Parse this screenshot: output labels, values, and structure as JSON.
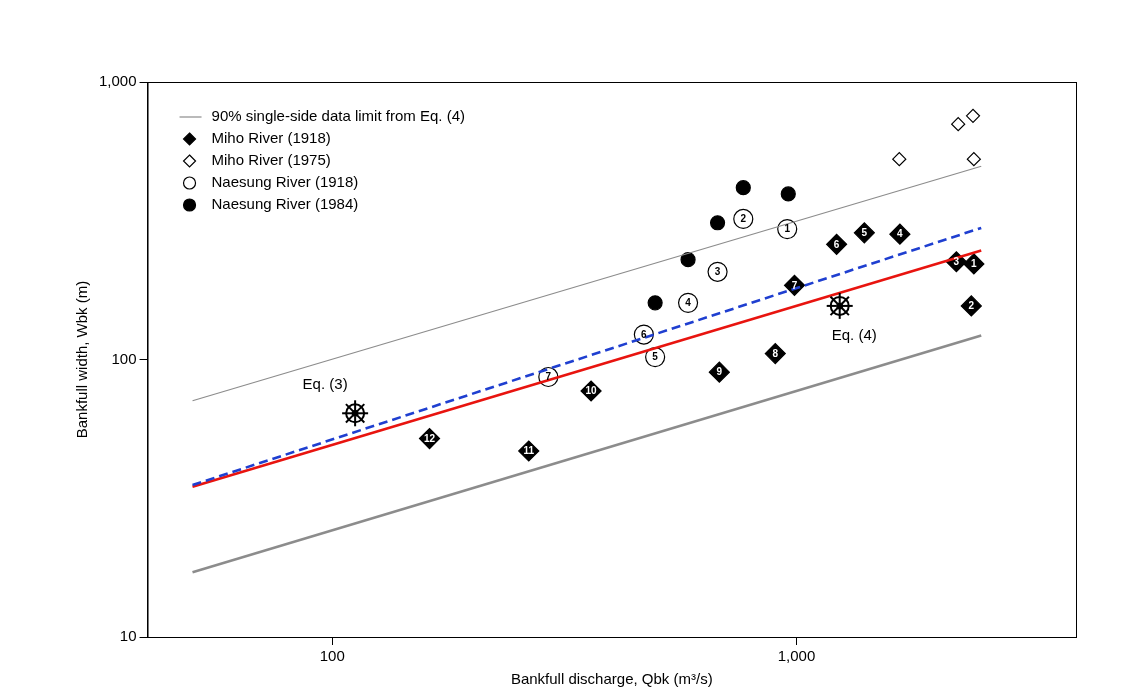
{
  "chart_data": {
    "type": "scatter",
    "x_label": "Bankfull discharge, Qbk (m³/s)",
    "y_label": "Bankfull width, Wbk (m)",
    "log": true,
    "grid": false,
    "legend": "top-left",
    "xlim": [
      40,
      4000
    ],
    "xticks": [
      100,
      {
        "value": 1000,
        "label": "1,000"
      }
    ],
    "ylim": [
      10,
      1000
    ],
    "yticks": [
      10,
      100,
      {
        "value": 1000,
        "label": "1,000"
      }
    ],
    "series": [
      {
        "name": "90% single-side data limit from Eq. (4)",
        "type": "line",
        "color": "#8c8c8c",
        "line_style": "solid",
        "x": [
          50,
          2500
        ],
        "values": [
          71,
          497
        ]
      },
      {
        "type": "line",
        "color": "#8c8c8c",
        "line_style": "solid",
        "x": [
          50,
          2500
        ],
        "values": [
          17.1,
          122
        ]
      },
      {
        "type": "line",
        "color": "#1f3fd0",
        "line_style": "dashed",
        "x": [
          50,
          2500
        ],
        "values": [
          35.3,
          298
        ]
      },
      {
        "type": "line",
        "color": "#e8140f",
        "line_style": "solid",
        "x": [
          50,
          2500
        ],
        "values": [
          34.8,
          247
        ]
      },
      {
        "name": "Miho River (1918)",
        "type": "scatter",
        "marker": "filled_diamond",
        "color": "#000000",
        "x": [
          2410,
          2380,
          2210,
          1670,
          1400,
          1220,
          990,
          900,
          682,
          361,
          265,
          162
        ],
        "values": [
          221,
          156,
          225,
          283,
          286,
          260,
          185,
          105,
          90,
          77,
          46.8,
          51.9
        ],
        "point_labels": [
          1,
          2,
          3,
          4,
          5,
          6,
          7,
          8,
          9,
          10,
          11,
          12
        ]
      },
      {
        "name": "Miho River (1975)",
        "type": "scatter",
        "marker": "open_diamond",
        "color": "#000000",
        "x": [
          1665,
          2230,
          2400,
          2410
        ],
        "values": [
          527,
          705,
          755,
          527
        ]
      },
      {
        "name": "Naesung River (1918)",
        "type": "scatter",
        "marker": "open_circle",
        "color": "#000000",
        "x": [
          955,
          768,
          676,
          584,
          496,
          469,
          292
        ],
        "values": [
          295,
          321,
          207,
          160,
          102,
          123,
          86.5
        ],
        "point_labels": [
          1,
          2,
          3,
          4,
          5,
          6,
          7
        ]
      },
      {
        "name": "Naesung River (1984)",
        "type": "scatter",
        "marker": "filled_circle",
        "color": "#000000",
        "x": [
          768,
          960,
          676,
          584,
          496
        ],
        "values": [
          416,
          395,
          311,
          229,
          160
        ]
      }
    ],
    "annotations": [
      {
        "text": "Eq. (3)",
        "x": 112,
        "y": 64,
        "marker": "wheel"
      },
      {
        "text": "Eq. (4)",
        "x": 1239,
        "y": 156,
        "marker": "wheel"
      }
    ]
  }
}
